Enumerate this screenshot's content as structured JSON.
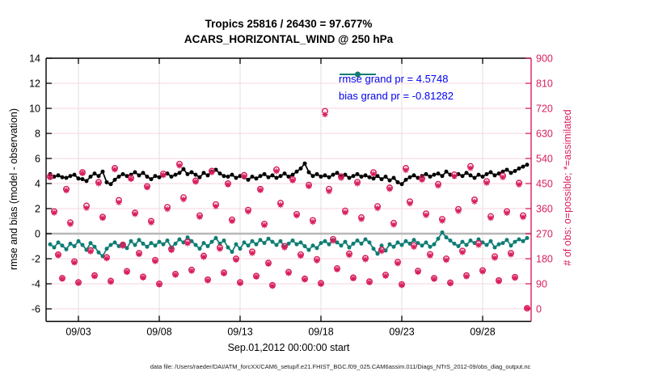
{
  "header": {
    "title_line1": "Tropics 25816 / 26430 = 97.677%",
    "title_line2": "ACARS_HORIZONTAL_WIND @ 250 hPa"
  },
  "stats": {
    "n_assimilated": 25816,
    "n_possible": 26430,
    "percent_assimilated": "97.677%"
  },
  "legend": {
    "items": [
      {
        "name": "rmse",
        "label": "rmse grand pr = 4.5748",
        "line_color": "#000000"
      },
      {
        "name": "bias",
        "label": "bias grand pr = -0.81282",
        "line_color": "#0e7d74"
      }
    ],
    "text_color": "#0000ee"
  },
  "footer": {
    "data_file_note": "data file: /Users/raeder/DAI/ATM_forcXX/CAM6_setup/f.e21.FHIST_BGC.f09_025.CAM6assim.011/Diags_NTrS_2012-09/obs_diag_output.nc"
  },
  "colors": {
    "rmse_black": "#000000",
    "bias_teal": "#0e7d74",
    "obs_pink": "#d81e5b",
    "legend_blue": "#0000ee",
    "grid_horizontal": "#f6d5df",
    "grid_vertical": "#e6dddd",
    "zero_line": "#b8b8b8",
    "axis_black": "#000000"
  },
  "chart_data": {
    "type": "line",
    "title": "Tropics 25816 / 26430 = 97.677%",
    "subtitle": "ACARS_HORIZONTAL_WIND @ 250 hPa",
    "xlabel": "Sep.01,2012 00:00:00 start",
    "ylabel_left": "rmse and bias (model - observation)",
    "ylabel_right": "# of obs: o=possible; *=assimilated",
    "grand_stats": {
      "rmse": 4.5748,
      "bias": -0.81282
    },
    "x_start": "2012-09-01 06:00",
    "x_step_hours": 6,
    "x_axis_days_range": [
      0,
      30
    ],
    "x_ticks": [
      {
        "t_days": 2,
        "label": "09/03"
      },
      {
        "t_days": 7,
        "label": "09/08"
      },
      {
        "t_days": 12,
        "label": "09/13"
      },
      {
        "t_days": 17,
        "label": "09/18"
      },
      {
        "t_days": 22,
        "label": "09/23"
      },
      {
        "t_days": 27,
        "label": "09/28"
      }
    ],
    "ylim_left": [
      -7,
      14
    ],
    "y_ticks_left": [
      14,
      12,
      10,
      8,
      6,
      4,
      2,
      0,
      -2,
      -4,
      -6
    ],
    "y_ticks_right": [
      900,
      810,
      720,
      630,
      540,
      450,
      360,
      270,
      180,
      90,
      0
    ],
    "right_axis_scale": "right_count = (left_value + 6) * 45",
    "grid": true,
    "legend_position": "top-right-inside",
    "series": [
      {
        "name": "rmse",
        "axis": "left",
        "marker": "filled-circle",
        "color": "#000000",
        "values": [
          4.75,
          4.55,
          4.65,
          4.5,
          4.45,
          4.6,
          4.7,
          4.4,
          4.35,
          4.2,
          4.55,
          4.8,
          4.6,
          4.95,
          4.1,
          3.95,
          4.3,
          4.55,
          4.75,
          4.6,
          4.7,
          4.9,
          4.65,
          4.85,
          4.55,
          4.35,
          4.6,
          4.5,
          4.65,
          4.8,
          4.55,
          4.7,
          4.85,
          5.15,
          4.75,
          4.9,
          4.7,
          4.5,
          4.85,
          4.65,
          4.95,
          5.1,
          4.8,
          4.6,
          4.55,
          4.7,
          4.45,
          4.6,
          4.5,
          4.3,
          4.55,
          4.4,
          4.6,
          4.75,
          4.5,
          4.65,
          4.45,
          4.6,
          4.8,
          4.55,
          4.7,
          4.95,
          5.2,
          5.6,
          4.9,
          4.6,
          4.75,
          4.55,
          4.65,
          4.5,
          4.7,
          4.85,
          4.55,
          4.7,
          4.45,
          4.6,
          4.75,
          4.55,
          4.65,
          4.5,
          4.4,
          4.6,
          4.35,
          4.55,
          4.25,
          4.45,
          4.1,
          3.95,
          4.3,
          4.5,
          4.65,
          4.45,
          4.6,
          4.75,
          4.55,
          4.7,
          4.8,
          4.6,
          4.95,
          4.7,
          4.55,
          4.75,
          4.6,
          4.85,
          4.65,
          4.45,
          4.7,
          4.55,
          4.75,
          4.9,
          4.65,
          4.8,
          4.95,
          5.1,
          4.85,
          5.0,
          5.2,
          5.35,
          5.5
        ]
      },
      {
        "name": "bias",
        "axis": "left",
        "marker": "filled-circle",
        "color": "#0e7d74",
        "values": [
          -0.85,
          -1.1,
          -0.7,
          -0.95,
          -1.25,
          -0.8,
          -1.0,
          -0.6,
          -0.9,
          -1.3,
          -0.75,
          -1.05,
          -1.5,
          -1.8,
          -1.2,
          -0.9,
          -0.7,
          -1.0,
          -0.85,
          -1.15,
          -0.6,
          -0.9,
          -0.5,
          -0.8,
          -1.05,
          -0.75,
          -0.95,
          -0.65,
          -0.85,
          -0.55,
          -1.1,
          -0.8,
          -0.45,
          -0.7,
          -0.3,
          -0.6,
          -0.9,
          -1.2,
          -0.75,
          -1.0,
          -0.65,
          -0.35,
          -0.8,
          -0.55,
          -1.1,
          -1.45,
          -0.85,
          -1.2,
          -0.7,
          -0.95,
          -0.6,
          -0.85,
          -0.5,
          -0.75,
          -0.4,
          -0.65,
          -0.9,
          -0.6,
          -1.05,
          -0.8,
          -0.55,
          -0.85,
          -0.7,
          -1.0,
          -1.3,
          -0.95,
          -1.15,
          -0.75,
          -0.6,
          -0.85,
          -0.5,
          -0.7,
          -0.95,
          -0.65,
          -1.1,
          -0.8,
          -0.55,
          -0.8,
          -0.45,
          -0.7,
          -1.2,
          -1.6,
          -0.95,
          -1.35,
          -0.85,
          -1.05,
          -0.7,
          -0.9,
          -0.6,
          -0.8,
          -0.5,
          -0.75,
          -0.95,
          -0.7,
          -1.05,
          -0.85,
          -0.4,
          0.1,
          -0.3,
          -0.55,
          -0.8,
          -1.0,
          -0.65,
          -0.9,
          -0.55,
          -0.75,
          -0.45,
          -0.7,
          -0.9,
          -0.6,
          -1.1,
          -0.85,
          -0.75,
          -0.5,
          -0.95,
          -0.65,
          -0.45,
          -0.6,
          -0.35
        ]
      },
      {
        "name": "possible",
        "axis": "right",
        "marker": "open-circle",
        "color": "#d81e5b",
        "values": [
          475,
          350,
          195,
          110,
          430,
          310,
          170,
          95,
          490,
          370,
          210,
          120,
          455,
          330,
          185,
          100,
          505,
          390,
          230,
          135,
          470,
          345,
          200,
          115,
          440,
          315,
          175,
          90,
          485,
          365,
          215,
          125,
          520,
          400,
          240,
          140,
          460,
          335,
          190,
          105,
          495,
          375,
          220,
          130,
          450,
          320,
          180,
          95,
          480,
          355,
          205,
          118,
          430,
          305,
          165,
          85,
          500,
          380,
          225,
          132,
          465,
          340,
          195,
          108,
          445,
          318,
          178,
          92,
          710,
          430,
          250,
          145,
          475,
          352,
          198,
          112,
          455,
          328,
          182,
          98,
          490,
          368,
          212,
          122,
          435,
          308,
          168,
          88,
          505,
          385,
          228,
          136,
          468,
          342,
          196,
          110,
          448,
          322,
          180,
          94,
          482,
          358,
          208,
          120,
          512,
          392,
          235,
          138,
          458,
          332,
          188,
          102,
          478,
          350,
          200,
          114,
          452,
          335,
          2
        ]
      },
      {
        "name": "assimilated",
        "axis": "right",
        "marker": "asterisk",
        "color": "#d81e5b",
        "values": [
          472,
          345,
          192,
          108,
          425,
          304,
          166,
          93,
          487,
          362,
          206,
          117,
          450,
          326,
          181,
          97,
          500,
          382,
          226,
          132,
          466,
          340,
          196,
          112,
          436,
          310,
          171,
          87,
          480,
          358,
          210,
          122,
          514,
          393,
          235,
          136,
          456,
          330,
          186,
          102,
          490,
          368,
          215,
          127,
          446,
          315,
          176,
          92,
          475,
          349,
          200,
          115,
          426,
          300,
          161,
          82,
          494,
          373,
          220,
          128,
          461,
          335,
          190,
          105,
          440,
          312,
          173,
          89,
          698,
          422,
          244,
          141,
          470,
          346,
          193,
          109,
          450,
          322,
          177,
          95,
          484,
          361,
          207,
          118,
          430,
          302,
          163,
          85,
          498,
          378,
          222,
          132,
          463,
          336,
          191,
          107,
          442,
          316,
          175,
          91,
          476,
          351,
          203,
          116,
          505,
          385,
          229,
          134,
          452,
          326,
          183,
          99,
          472,
          344,
          195,
          111,
          446,
          329,
          2
        ]
      }
    ]
  }
}
